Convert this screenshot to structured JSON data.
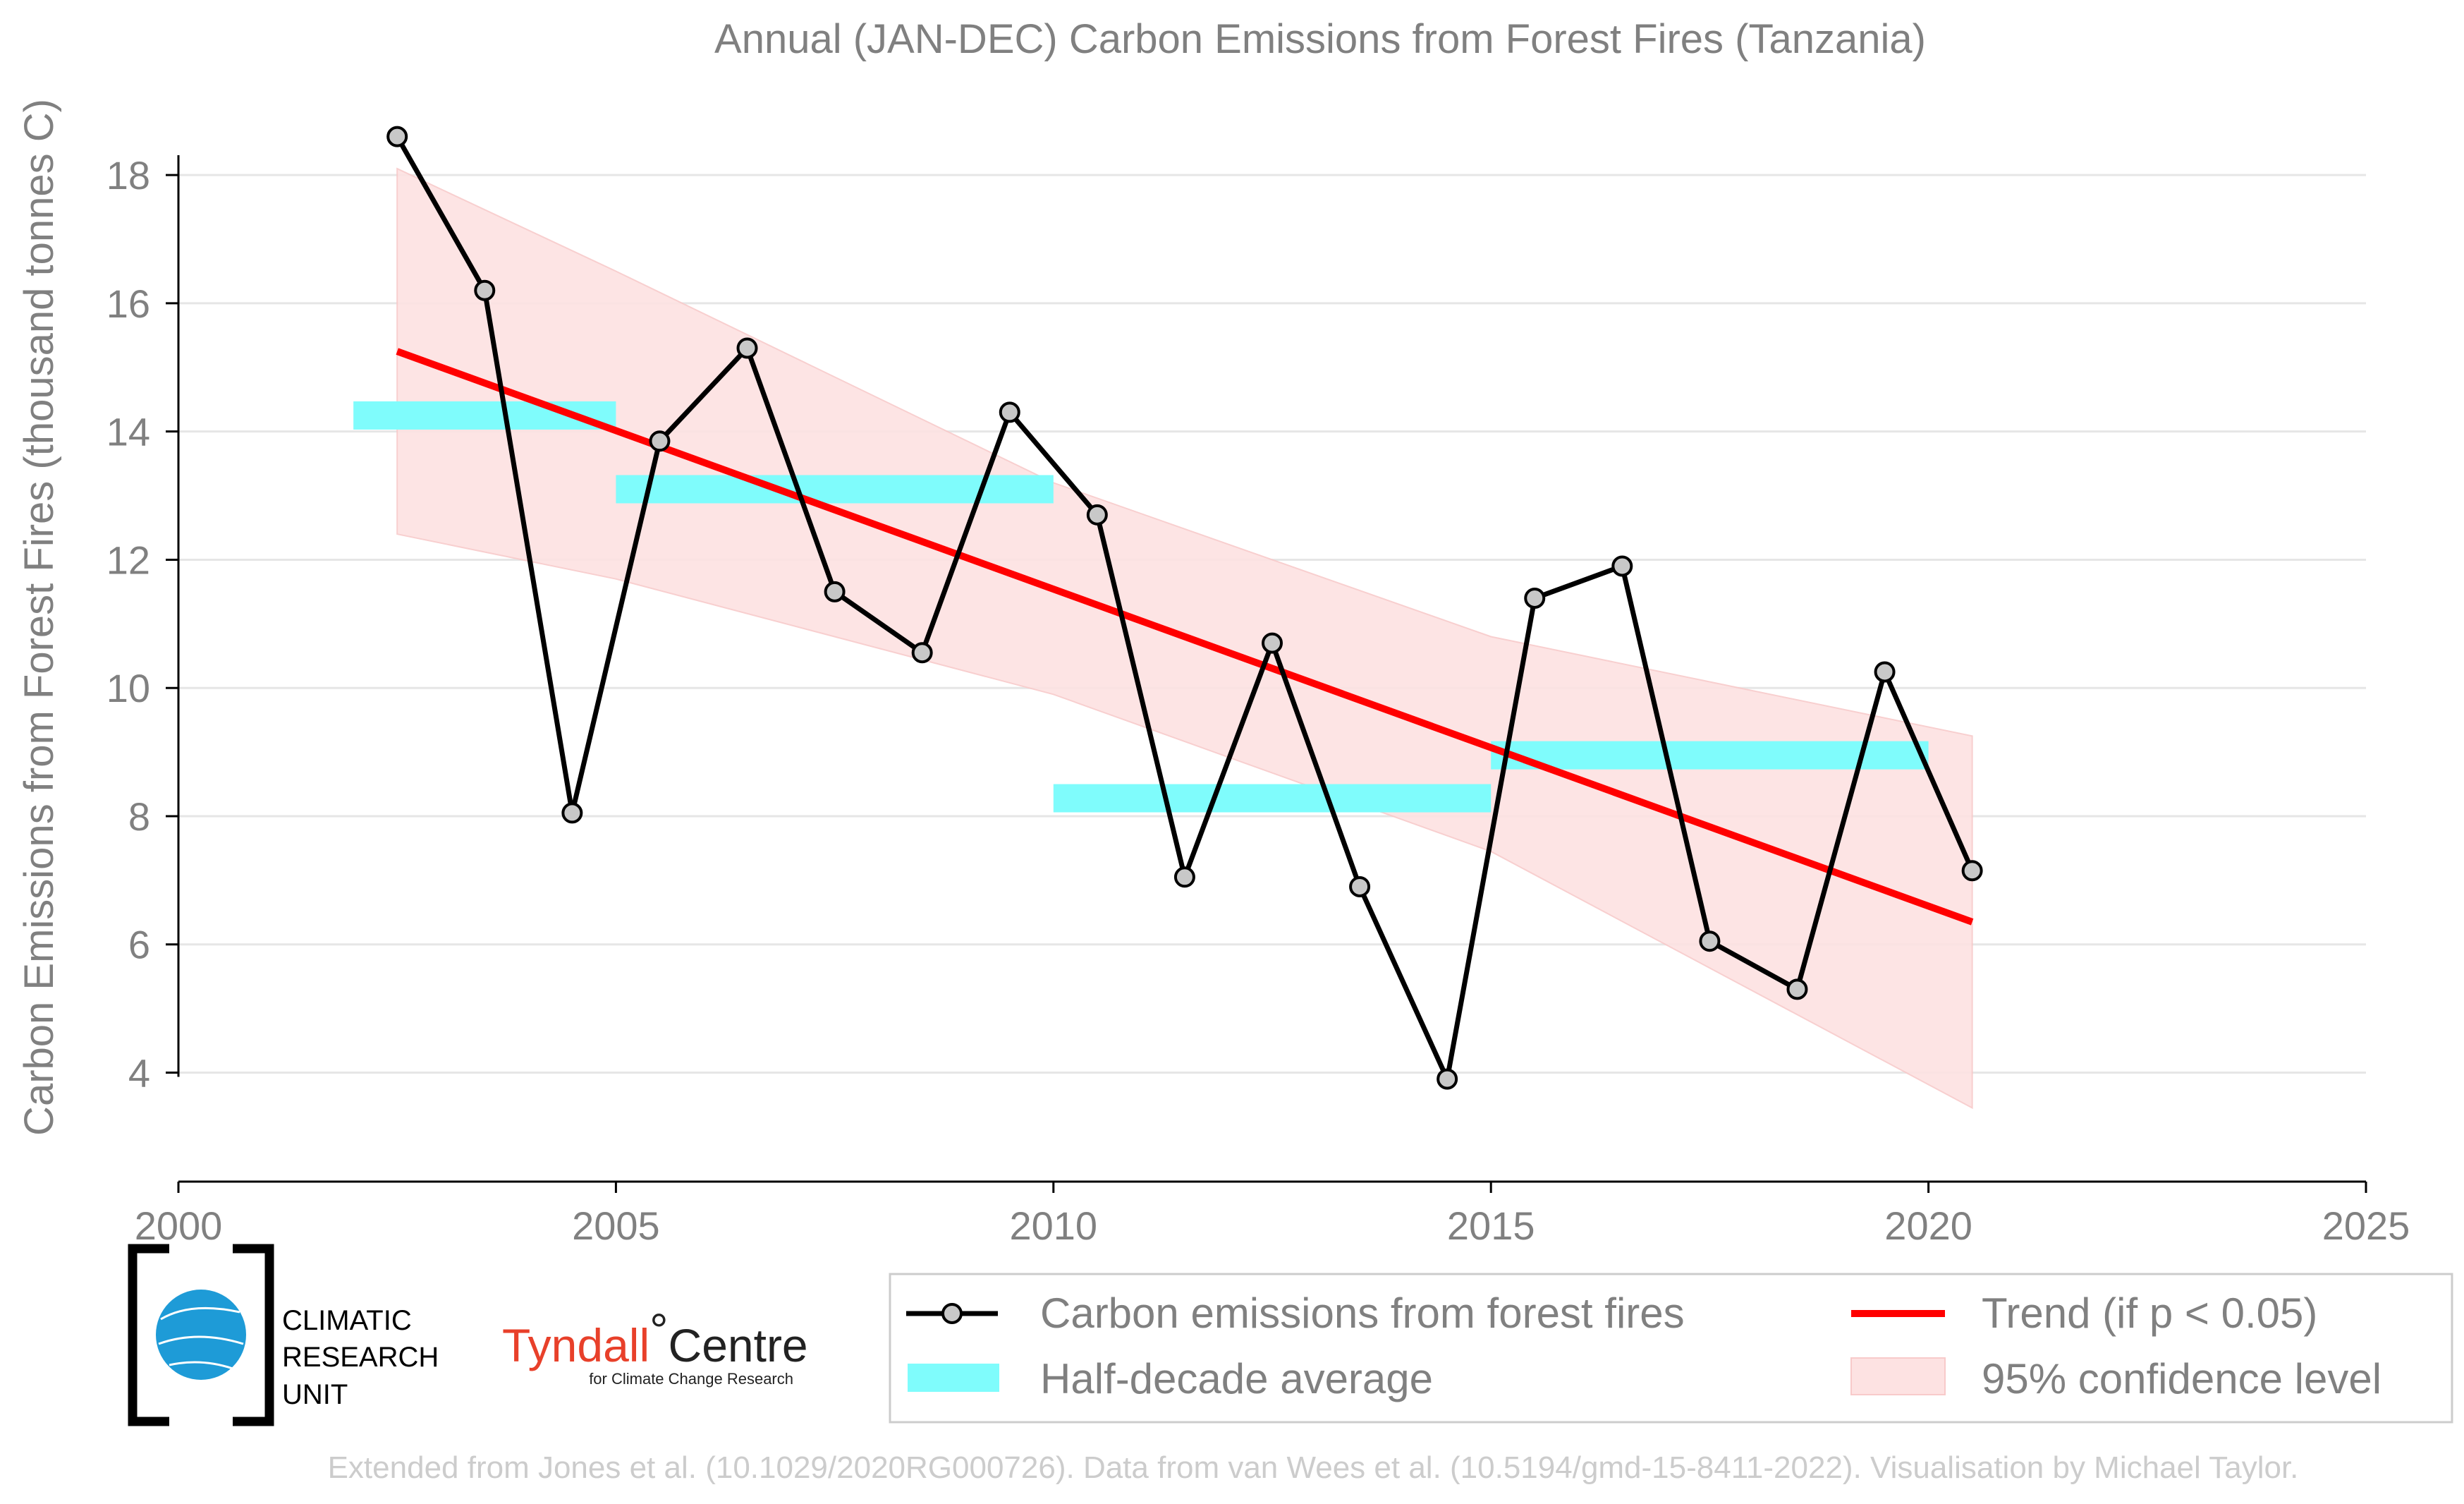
{
  "chart_data": {
    "type": "line",
    "title": "Annual (JAN-DEC) Carbon Emissions from Forest Fires (Tanzania)",
    "xlabel": "",
    "ylabel": "Carbon Emissions from Forest Fires (thousand tonnes C)",
    "xlim": [
      2000,
      2025
    ],
    "ylim": [
      2.3,
      19.3
    ],
    "xticks": [
      2000,
      2005,
      2010,
      2015,
      2020,
      2025
    ],
    "yticks": [
      4,
      6,
      8,
      10,
      12,
      14,
      16,
      18
    ],
    "grid": "horizontal",
    "legend_position": "bottom",
    "series": [
      {
        "name": "Carbon emissions from forest fires",
        "color": "#000000",
        "marker_fill": "#c8c8c8",
        "x": [
          2002.5,
          2003.5,
          2004.5,
          2005.5,
          2006.5,
          2007.5,
          2008.5,
          2009.5,
          2010.5,
          2011.5,
          2012.5,
          2013.5,
          2014.5,
          2015.5,
          2016.5,
          2017.5,
          2018.5,
          2019.5,
          2020.5
        ],
        "values": [
          18.6,
          16.2,
          8.05,
          13.85,
          15.3,
          11.5,
          10.55,
          14.3,
          12.7,
          7.05,
          10.7,
          6.9,
          3.9,
          11.4,
          11.9,
          6.05,
          5.3,
          10.25,
          7.15
        ]
      },
      {
        "name": "Half-decade average",
        "color": "#7ffcfc",
        "segments": [
          {
            "x0": 2002,
            "x1": 2005,
            "value": 14.25
          },
          {
            "x0": 2005,
            "x1": 2010,
            "value": 13.1
          },
          {
            "x0": 2010,
            "x1": 2015,
            "value": 8.28
          },
          {
            "x0": 2015,
            "x1": 2020,
            "value": 8.95
          }
        ]
      },
      {
        "name": "Trend (if p < 0.05)",
        "color": "#ff0000",
        "x": [
          2002.5,
          2020.5
        ],
        "values": [
          15.25,
          6.35
        ]
      },
      {
        "name": "95% confidence level",
        "color": "#fde2e2",
        "x": [
          2002.5,
          2005,
          2010,
          2015,
          2020.5
        ],
        "upper": [
          18.1,
          16.5,
          13.2,
          10.8,
          9.25
        ],
        "lower": [
          12.4,
          11.7,
          9.9,
          7.45,
          3.45
        ]
      }
    ]
  },
  "logos": {
    "cru": {
      "line1": "CLIMATIC",
      "line2": "RESEARCH",
      "line3": "UNIT"
    },
    "tyndall": {
      "main": "Tyndall",
      "degree": "°",
      "centre": "Centre",
      "sub": "for Climate Change Research"
    }
  },
  "footer": "Extended from Jones et al. (10.1029/2020RG000726). Data from van Wees et al. (10.5194/gmd-15-8411-2022). Visualisation by Michael Taylor."
}
